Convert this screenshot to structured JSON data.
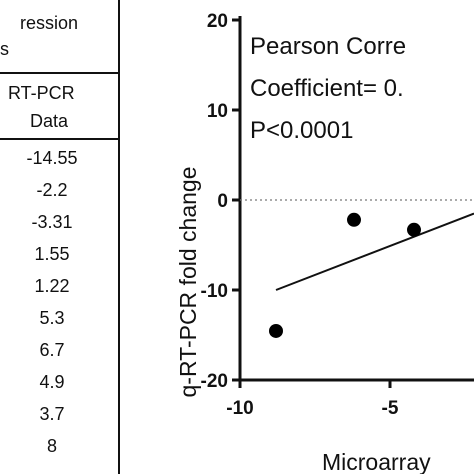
{
  "table": {
    "header_top": "ression",
    "header_top2": "s",
    "column_header_line1": "RT-PCR",
    "column_header_line2": "Data",
    "rt_pcr_values": [
      "-14.55",
      "-2.2",
      "-3.31",
      "1.55",
      "1.22",
      "5.3",
      "6.7",
      "4.9",
      "3.7",
      "8"
    ]
  },
  "chart_data": {
    "type": "scatter",
    "ylabel": "q-RT-PCR fold change",
    "xlabel": "Microarray",
    "annotation_lines": [
      "Pearson Corre",
      "Coefficient= 0.",
      "P<0.0001"
    ],
    "x_ticks": [
      "-10",
      "-5"
    ],
    "y_ticks": [
      "20",
      "10",
      "0",
      "-10",
      "-20"
    ],
    "xlim": [
      -10,
      -2.2
    ],
    "ylim": [
      -20,
      20
    ],
    "zero_reference_line": "dotted",
    "points": [
      {
        "x": -8.8,
        "y": -14.55
      },
      {
        "x": -6.2,
        "y": -2.2
      },
      {
        "x": -4.2,
        "y": -3.31
      }
    ],
    "regression_line": {
      "x": [
        -8.8,
        -2.2
      ],
      "y": [
        -10.0,
        -1.5
      ]
    }
  }
}
